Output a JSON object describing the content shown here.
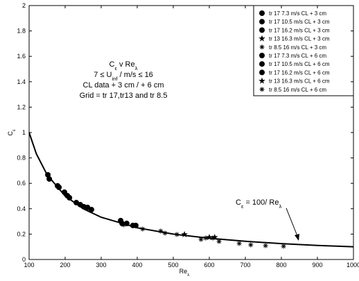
{
  "chart_data": {
    "type": "scatter",
    "xlim": [
      100,
      1000
    ],
    "ylim": [
      0,
      2
    ],
    "xticks": [
      100,
      200,
      300,
      400,
      500,
      600,
      700,
      800,
      900,
      1000
    ],
    "yticks": [
      0,
      0.2,
      0.4,
      0.6,
      0.8,
      1,
      1.2,
      1.4,
      1.6,
      1.8,
      2
    ],
    "xlabel": [
      "Re",
      {
        "sub": "λ"
      }
    ],
    "ylabel": [
      "C",
      {
        "sub": "ε"
      }
    ],
    "annotations": [
      [
        "C",
        {
          "sub": "ε"
        },
        " v  Re",
        {
          "sub": "λ"
        }
      ],
      [
        "7  ≤  U",
        {
          "sub": "inf"
        },
        " / m/s  ≤  16"
      ],
      [
        "CL data + 3 cm / + 6 cm"
      ],
      [
        "Grid = tr 17,tr13 and tr 8.5"
      ]
    ],
    "curve_label": [
      "C",
      {
        "sub": "ε"
      },
      " = 100/ Re",
      {
        "sub": "λ"
      }
    ],
    "curve": {
      "color": "#000000",
      "x": [
        100,
        120,
        150,
        200,
        250,
        300,
        400,
        500,
        600,
        700,
        800,
        900,
        1000
      ],
      "values": [
        1,
        0.833,
        0.667,
        0.5,
        0.4,
        0.333,
        0.25,
        0.2,
        0.167,
        0.143,
        0.125,
        0.111,
        0.1
      ]
    },
    "series": [
      {
        "name": "tr 17 7.3 m/s CL + 3 cm",
        "marker": "circle",
        "color": "#000000",
        "x": [
          152,
          183,
          206
        ],
        "values": [
          0.667,
          0.568,
          0.503
        ]
      },
      {
        "name": "tr 17 10.5 m/s CL + 3 cm",
        "marker": "circle",
        "color": "#000000",
        "x": [
          231,
          252,
          273
        ],
        "values": [
          0.448,
          0.415,
          0.393
        ]
      },
      {
        "name": "tr 17 16.2 m/s CL + 3 cm",
        "marker": "circle",
        "color": "#000000",
        "x": [
          354,
          371,
          396
        ],
        "values": [
          0.306,
          0.284,
          0.268
        ]
      },
      {
        "name": "tr 13 16.3 m/s CL + 3 cm",
        "marker": "pentagram",
        "color": "#000000",
        "x": [
          531
        ],
        "values": [
          0.197
        ]
      },
      {
        "name": "tr 8.5 16 m/s CL + 3 cm",
        "marker": "asterisk",
        "color": "#000000",
        "x": [
          362,
          415,
          465,
          510
        ],
        "values": [
          0.273,
          0.24,
          0.224,
          0.197
        ]
      },
      {
        "name": "tr 17 7.3 m/s CL + 6 cm",
        "marker": "circle",
        "color": "#000000",
        "x": [
          156,
          179,
          198
        ],
        "values": [
          0.634,
          0.58,
          0.53
        ]
      },
      {
        "name": "tr 17 10.5 m/s CL + 6 cm",
        "marker": "circle",
        "color": "#000000",
        "x": [
          212,
          242,
          262
        ],
        "values": [
          0.486,
          0.432,
          0.41
        ]
      },
      {
        "name": "tr 17 16.2 m/s CL + 6 cm",
        "marker": "circle",
        "color": "#000000",
        "x": [
          358,
          388
        ],
        "values": [
          0.284,
          0.268
        ]
      },
      {
        "name": "tr 13 16.3 m/s CL + 6 cm",
        "marker": "pentagram",
        "color": "#000000",
        "x": [
          600,
          615
        ],
        "values": [
          0.175,
          0.175
        ]
      },
      {
        "name": "tr 8.5 16 m/s CL + 6 cm",
        "marker": "asterisk",
        "color": "#000000",
        "x": [
          477,
          577,
          590,
          610,
          627,
          683,
          715,
          756,
          806
        ],
        "values": [
          0.208,
          0.158,
          0.169,
          0.169,
          0.142,
          0.126,
          0.115,
          0.109,
          0.104
        ]
      }
    ]
  }
}
